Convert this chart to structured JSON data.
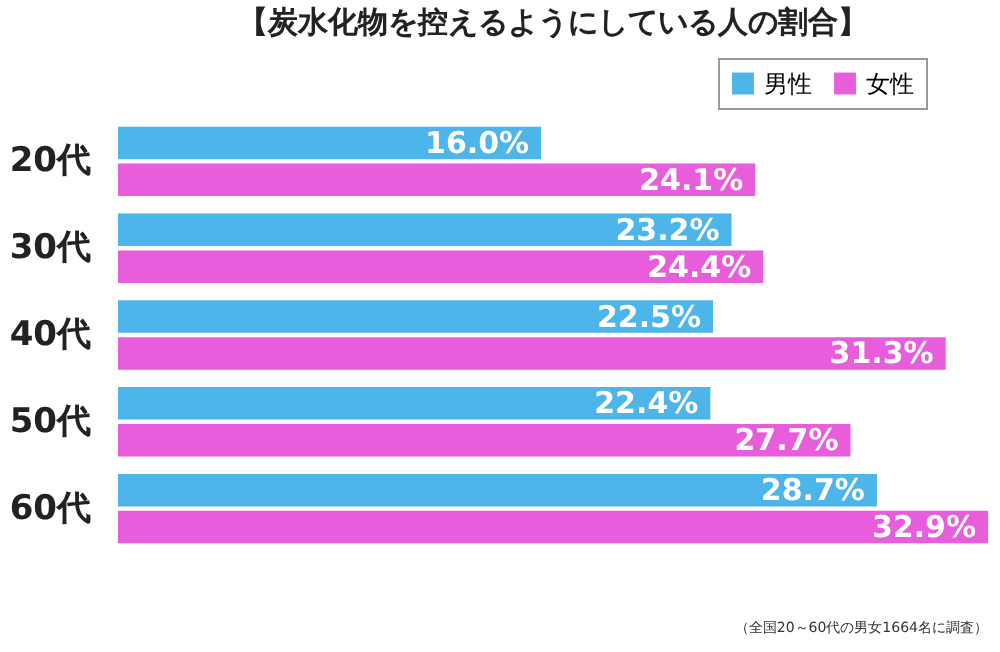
{
  "chart_data": {
    "type": "bar",
    "orientation": "horizontal",
    "title": "【炭水化物を控えるようにしている人の割合】",
    "categories": [
      "20代",
      "30代",
      "40代",
      "50代",
      "60代"
    ],
    "series": [
      {
        "name": "男性",
        "color": "#4db5ea",
        "values": [
          16.0,
          23.2,
          22.5,
          22.4,
          28.7
        ],
        "value_labels": [
          "16.0%",
          "23.2%",
          "22.5%",
          "22.4%",
          "28.7%"
        ]
      },
      {
        "name": "女性",
        "color": "#e85ddc",
        "values": [
          24.1,
          24.4,
          31.3,
          27.7,
          32.9
        ],
        "value_labels": [
          "24.1%",
          "24.4%",
          "31.3%",
          "27.7%",
          "32.9%"
        ]
      }
    ],
    "legend": "top right",
    "annotations": [
      "（全国20～60代の男女1664名に調査）"
    ]
  }
}
